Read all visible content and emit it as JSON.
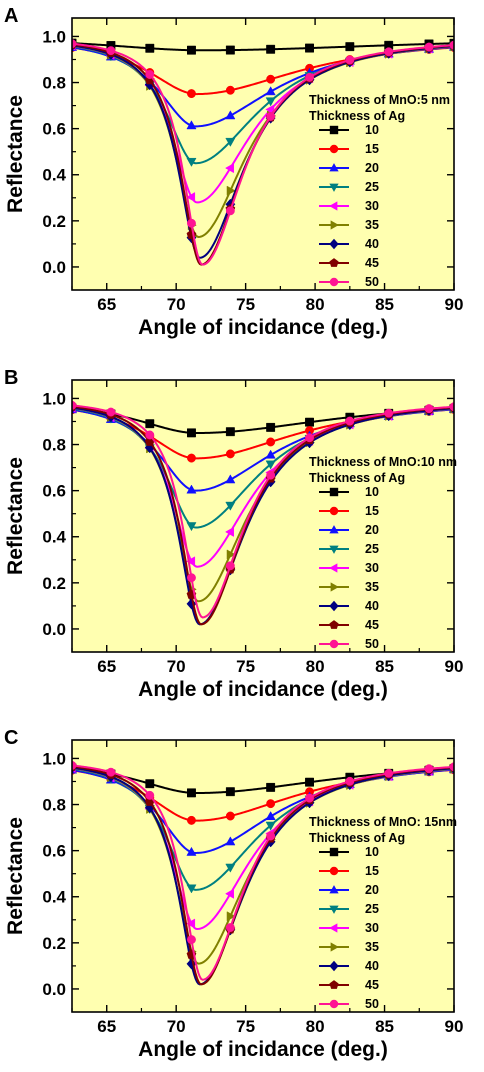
{
  "theme": {
    "plot_bg": "#FFFFB0"
  },
  "series_styles": [
    {
      "name": "10",
      "color": "#000000",
      "marker": "square"
    },
    {
      "name": "15",
      "color": "#FF0000",
      "marker": "circle"
    },
    {
      "name": "20",
      "color": "#1010FF",
      "marker": "triangle-up"
    },
    {
      "name": "25",
      "color": "#008080",
      "marker": "triangle-down"
    },
    {
      "name": "30",
      "color": "#FF00FF",
      "marker": "triangle-left"
    },
    {
      "name": "35",
      "color": "#808000",
      "marker": "triangle-right"
    },
    {
      "name": "40",
      "color": "#000080",
      "marker": "diamond"
    },
    {
      "name": "45",
      "color": "#800000",
      "marker": "pentagon"
    },
    {
      "name": "50",
      "color": "#FF1493",
      "marker": "circle"
    }
  ],
  "chart_data": [
    {
      "panel": "A",
      "type": "line",
      "xlabel": "Angle of incidance (deg.)",
      "ylabel": "Reflectance",
      "xlim": [
        62.5,
        90
      ],
      "ylim": [
        -0.1,
        1.08
      ],
      "xticks": [
        "65",
        "70",
        "75",
        "80",
        "85",
        "90"
      ],
      "yticks": [
        "0.0",
        "0.2",
        "0.4",
        "0.6",
        "0.8",
        "1.0"
      ],
      "legend": {
        "title_lines": [
          "Thickness of MnO:5 nm",
          "Thickness of Ag"
        ],
        "placement": "right"
      },
      "series": [
        {
          "name": "10",
          "min": 0.94,
          "theta": 71.8,
          "wl": 9.0,
          "wr": 18.0
        },
        {
          "name": "15",
          "min": 0.75,
          "theta": 71.5,
          "wl": 4.4,
          "wr": 9.0
        },
        {
          "name": "20",
          "min": 0.61,
          "theta": 71.4,
          "wl": 3.3,
          "wr": 6.8
        },
        {
          "name": "25",
          "min": 0.45,
          "theta": 71.4,
          "wl": 2.6,
          "wr": 5.5
        },
        {
          "name": "30",
          "min": 0.28,
          "theta": 71.5,
          "wl": 2.2,
          "wr": 4.7
        },
        {
          "name": "35",
          "min": 0.13,
          "theta": 71.6,
          "wl": 2.0,
          "wr": 4.2
        },
        {
          "name": "40",
          "min": 0.04,
          "theta": 71.7,
          "wl": 1.9,
          "wr": 3.9
        },
        {
          "name": "45",
          "min": 0.01,
          "theta": 71.8,
          "wl": 1.8,
          "wr": 3.7
        },
        {
          "name": "50",
          "min": 0.01,
          "theta": 71.9,
          "wl": 1.7,
          "wr": 3.6
        }
      ]
    },
    {
      "panel": "B",
      "type": "line",
      "xlabel": "Angle of incidance (deg.)",
      "ylabel": "Reflectance",
      "xlim": [
        62.5,
        90
      ],
      "ylim": [
        -0.1,
        1.08
      ],
      "xticks": [
        "65",
        "70",
        "75",
        "80",
        "85",
        "90"
      ],
      "yticks": [
        "0.0",
        "0.2",
        "0.4",
        "0.6",
        "0.8",
        "1.0"
      ],
      "legend": {
        "title_lines": [
          "Thickness of MnO:10 nm",
          "Thickness of Ag"
        ],
        "placement": "right"
      },
      "series": [
        {
          "name": "10",
          "min": 0.85,
          "theta": 71.5,
          "wl": 5.6,
          "wr": 12.0
        },
        {
          "name": "15",
          "min": 0.74,
          "theta": 71.4,
          "wl": 4.3,
          "wr": 8.8
        },
        {
          "name": "20",
          "min": 0.6,
          "theta": 71.4,
          "wl": 3.3,
          "wr": 6.8
        },
        {
          "name": "25",
          "min": 0.44,
          "theta": 71.4,
          "wl": 2.6,
          "wr": 5.5
        },
        {
          "name": "30",
          "min": 0.27,
          "theta": 71.5,
          "wl": 2.2,
          "wr": 4.7
        },
        {
          "name": "35",
          "min": 0.12,
          "theta": 71.6,
          "wl": 2.0,
          "wr": 4.2
        },
        {
          "name": "40",
          "min": 0.02,
          "theta": 71.7,
          "wl": 1.9,
          "wr": 3.9
        },
        {
          "name": "45",
          "min": 0.02,
          "theta": 71.8,
          "wl": 1.8,
          "wr": 3.7
        },
        {
          "name": "50",
          "min": 0.05,
          "theta": 71.9,
          "wl": 1.7,
          "wr": 3.6
        }
      ]
    },
    {
      "panel": "C",
      "type": "line",
      "xlabel": "Angle of incidance (deg.)",
      "ylabel": "Reflectance",
      "xlim": [
        62.5,
        90
      ],
      "ylim": [
        -0.1,
        1.08
      ],
      "xticks": [
        "65",
        "70",
        "75",
        "80",
        "85",
        "90"
      ],
      "yticks": [
        "0.0",
        "0.2",
        "0.4",
        "0.6",
        "0.8",
        "1.0"
      ],
      "legend": {
        "title_lines": [
          "Thickness of MnO: 15nm",
          "Thickness of Ag"
        ],
        "placement": "right"
      },
      "series": [
        {
          "name": "10",
          "min": 0.85,
          "theta": 71.5,
          "wl": 5.6,
          "wr": 12.0
        },
        {
          "name": "15",
          "min": 0.73,
          "theta": 71.4,
          "wl": 4.3,
          "wr": 8.8
        },
        {
          "name": "20",
          "min": 0.59,
          "theta": 71.4,
          "wl": 3.3,
          "wr": 6.8
        },
        {
          "name": "25",
          "min": 0.43,
          "theta": 71.4,
          "wl": 2.6,
          "wr": 5.5
        },
        {
          "name": "30",
          "min": 0.26,
          "theta": 71.5,
          "wl": 2.2,
          "wr": 4.7
        },
        {
          "name": "35",
          "min": 0.11,
          "theta": 71.6,
          "wl": 2.0,
          "wr": 4.2
        },
        {
          "name": "40",
          "min": 0.02,
          "theta": 71.7,
          "wl": 1.9,
          "wr": 3.9
        },
        {
          "name": "45",
          "min": 0.02,
          "theta": 71.8,
          "wl": 1.8,
          "wr": 3.7
        },
        {
          "name": "50",
          "min": 0.04,
          "theta": 71.9,
          "wl": 1.7,
          "wr": 3.6
        }
      ]
    }
  ]
}
